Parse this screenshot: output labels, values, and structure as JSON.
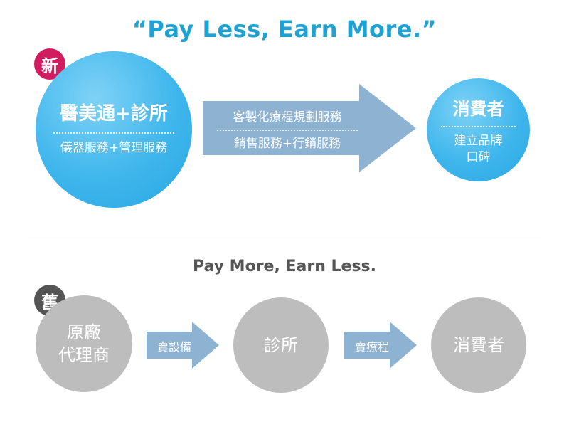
{
  "new_model": {
    "title": "“Pay Less, Earn More.”",
    "badge": "新",
    "source": {
      "line1": "醫美通+診所",
      "line2": "儀器服務+管理服務"
    },
    "arrow": {
      "line1": "客製化療程規劃服務",
      "line2": "銷售服務+行銷服務"
    },
    "target": {
      "line1": "消費者",
      "line2a": "建立品牌",
      "line2b": "口碑"
    }
  },
  "old_model": {
    "title": "Pay More, Earn Less.",
    "badge": "舊",
    "node1a": "原廠",
    "node1b": "代理商",
    "arrow1": "賣設備",
    "node2": "診所",
    "arrow2": "賣療程",
    "node3": "消費者"
  },
  "colors": {
    "title_blue": "#1fa2d2",
    "circle_blue": "#3fb6ec",
    "arrow_blue": "#8eb3d2",
    "badge_red": "#d11d5f",
    "badge_gray": "#555555",
    "gray": "#bdbdbd"
  }
}
